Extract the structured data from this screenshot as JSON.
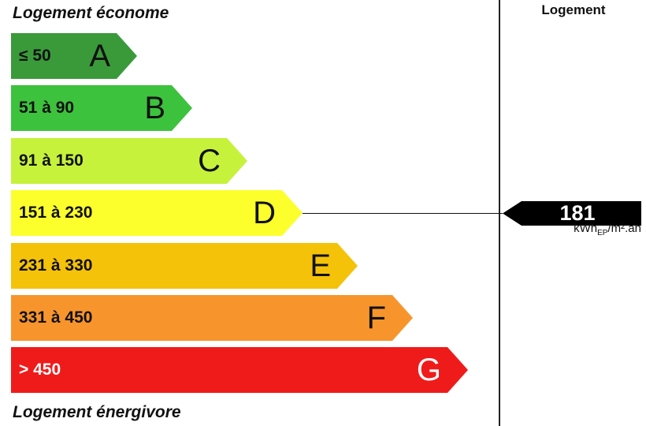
{
  "header": {
    "top_caption": "Logement économe",
    "bottom_caption": "Logement énergivore",
    "column_title": "Logement"
  },
  "chart_data": {
    "type": "bar",
    "categories": [
      "A",
      "B",
      "C",
      "D",
      "E",
      "F",
      "G"
    ],
    "ranges": [
      "≤ 50",
      "51 à 90",
      "91 à 150",
      "151 à 230",
      "231 à 330",
      "331 à 450",
      "> 450"
    ],
    "colors": [
      "#3a9a3a",
      "#3dc23d",
      "#c6f23c",
      "#fcff2c",
      "#f5c20a",
      "#f7952c",
      "#ef1b1b"
    ],
    "value": 181,
    "value_class": "D",
    "unit_main": "kWh",
    "unit_sub": "EP",
    "unit_rest": "/m².an"
  }
}
